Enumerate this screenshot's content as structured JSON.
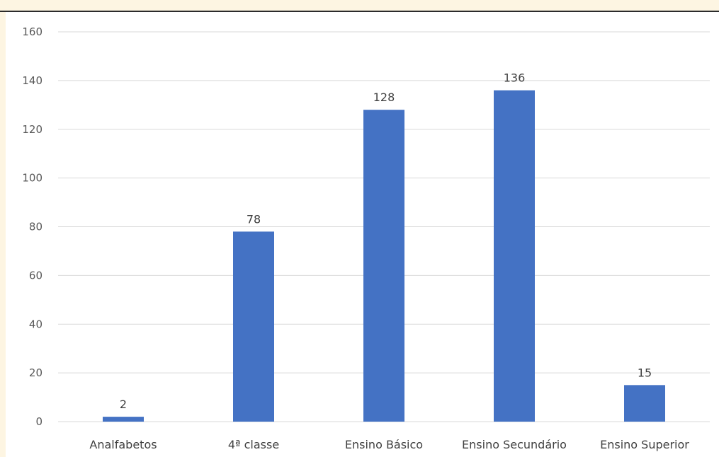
{
  "chart_data": {
    "type": "bar",
    "title": "",
    "xlabel": "",
    "ylabel": "",
    "categories": [
      "Analfabetos",
      "4ª classe",
      "Ensino Básico",
      "Ensino Secundário",
      "Ensino Superior"
    ],
    "values": [
      2,
      78,
      128,
      136,
      15
    ],
    "data_labels": [
      "2",
      "78",
      "128",
      "136",
      "15"
    ],
    "ylim": [
      0,
      160
    ],
    "yticks": [
      0,
      20,
      40,
      60,
      80,
      100,
      120,
      140,
      160
    ],
    "ytick_labels": [
      "0",
      "20",
      "40",
      "60",
      "80",
      "100",
      "120",
      "140",
      "160"
    ],
    "grid": true,
    "legend": "none",
    "bar_color": "#4472c4",
    "grid_color": "#d9d9d9"
  }
}
